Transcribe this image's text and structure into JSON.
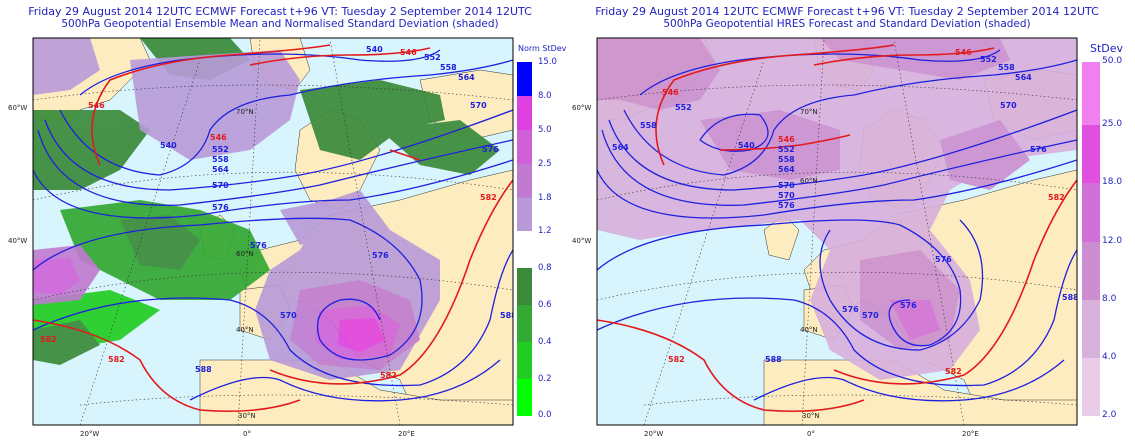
{
  "left_panel": {
    "title_line1": "Friday 29 August 2014 12UTC ECMWF Forecast t+96  VT: Tuesday 2 September 2014 12UTC",
    "title_line2": "500hPa Geopotential Ensemble Mean and Normalised Standard Deviation (shaded)",
    "legend_title": "Norm StDev",
    "legend_ticks_upper": [
      "15.0",
      "8.0",
      "5.0",
      "2.5",
      "1.8",
      "1.2"
    ],
    "legend_ticks_lower": [
      "0.8",
      "0.6",
      "0.4",
      "0.2",
      "0.0"
    ],
    "contour_labels": [
      "546",
      "540",
      "546",
      "552",
      "558",
      "564",
      "570",
      "576",
      "582",
      "588",
      "540",
      "546",
      "552",
      "558",
      "564",
      "570",
      "576",
      "576",
      "582",
      "570",
      "576",
      "582",
      "588",
      "582"
    ],
    "lon_labels": [
      "20°W",
      "0°",
      "20°E"
    ],
    "lat_labels": [
      "60°W",
      "40°W",
      "70°N",
      "60°N",
      "40°N",
      "30°N"
    ]
  },
  "right_panel": {
    "title_line1": "Friday 29 August 2014 12UTC ECMWF Forecast t+96  VT: Tuesday 2 September 2014 12UTC",
    "title_line2": "500hPa Geopotential HRES Forecast and Standard Deviation (shaded)",
    "legend_title": "StDev",
    "legend_ticks": [
      "50.0",
      "25.0",
      "18.0",
      "12.0",
      "8.0",
      "4.0",
      "2.0"
    ],
    "contour_labels": [
      "546",
      "552",
      "558",
      "564",
      "570",
      "576",
      "582",
      "588",
      "546",
      "540",
      "546",
      "552",
      "558",
      "564",
      "570",
      "576",
      "576",
      "570",
      "576",
      "582",
      "588",
      "582",
      "570",
      "576",
      "552",
      "558",
      "564"
    ],
    "lon_labels": [
      "20°W",
      "0°",
      "20°E"
    ],
    "lat_labels": [
      "60°W",
      "40°W",
      "70°N",
      "60°N",
      "40°N",
      "30°N"
    ]
  },
  "colors": {
    "ocean": "#d8f4fc",
    "land": "#fcecc0",
    "contour_blue": "#1f1fdf",
    "contour_red": "#e31a1c",
    "norm_scale": [
      "#9a9ad8",
      "#b89ad8",
      "#c07ad0",
      "#d060d8",
      "#e040e0",
      "#0000ff"
    ],
    "green_scale": [
      "#00ff00",
      "#22cc22",
      "#33a833",
      "#3a8a3a"
    ],
    "stdev_scale": [
      "#e8cce8",
      "#d8b0dc",
      "#cc8ed0",
      "#d070d8",
      "#e050e0",
      "#f080f0"
    ]
  }
}
